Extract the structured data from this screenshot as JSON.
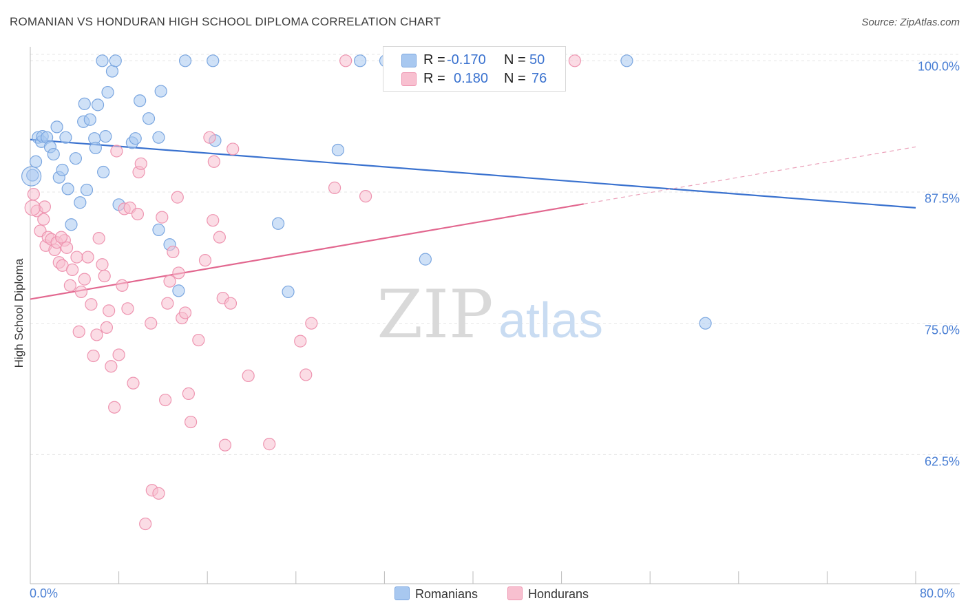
{
  "title": "ROMANIAN VS HONDURAN HIGH SCHOOL DIPLOMA CORRELATION CHART",
  "source": "Source: ZipAtlas.com",
  "watermark": {
    "zip": "ZIP",
    "atlas": "atlas"
  },
  "legend": {
    "r_label": "R =",
    "n_label": "N =",
    "rows": [
      {
        "name": "Romanians",
        "r": "-0.170",
        "n": "50",
        "color": "#a8c8f0",
        "stroke": "#7aa6e0"
      },
      {
        "name": "Hondurans",
        "r": "0.180",
        "n": "76",
        "color": "#f8c0d0",
        "stroke": "#ee94b0"
      }
    ]
  },
  "chart_data": {
    "type": "scatter",
    "title": "ROMANIAN VS HONDURAN HIGH SCHOOL DIPLOMA CORRELATION CHART",
    "xlabel": "",
    "ylabel": "High School Diploma",
    "xlim": [
      0,
      80
    ],
    "ylim": [
      50.2,
      101.2
    ],
    "x_tick_labels": [
      "0.0%",
      "80.0%"
    ],
    "y_ticks": [
      {
        "value": 100.0,
        "label": "100.0%"
      },
      {
        "value": 87.5,
        "label": "87.5%"
      },
      {
        "value": 75.0,
        "label": "75.0%"
      },
      {
        "value": 62.5,
        "label": "62.5%"
      }
    ],
    "series": [
      {
        "name": "Romanians",
        "color": "#a8c8f0",
        "line_color": "#3a72cf",
        "r": -0.17,
        "n": 50,
        "trend": {
          "x0": 0,
          "y0": 92.5,
          "x1": 80,
          "y1": 86.0
        },
        "points": [
          [
            0.2,
            89.1
          ],
          [
            0.5,
            90.4
          ],
          [
            0.7,
            92.7
          ],
          [
            1.0,
            92.3
          ],
          [
            1.1,
            92.8
          ],
          [
            1.5,
            92.7
          ],
          [
            1.8,
            91.8
          ],
          [
            2.1,
            91.1
          ],
          [
            2.4,
            93.7
          ],
          [
            2.6,
            88.9
          ],
          [
            2.9,
            89.6
          ],
          [
            3.2,
            92.7
          ],
          [
            3.4,
            87.8
          ],
          [
            3.7,
            84.4
          ],
          [
            4.1,
            90.7
          ],
          [
            4.5,
            86.5
          ],
          [
            4.8,
            94.2
          ],
          [
            4.9,
            95.9
          ],
          [
            5.1,
            87.7
          ],
          [
            5.4,
            94.4
          ],
          [
            5.8,
            92.6
          ],
          [
            5.9,
            91.7
          ],
          [
            6.1,
            95.8
          ],
          [
            6.5,
            100.0
          ],
          [
            6.6,
            89.4
          ],
          [
            6.8,
            92.8
          ],
          [
            7.0,
            97.0
          ],
          [
            7.4,
            99.0
          ],
          [
            7.7,
            100.0
          ],
          [
            8.0,
            86.3
          ],
          [
            9.2,
            92.2
          ],
          [
            9.5,
            92.6
          ],
          [
            9.9,
            96.2
          ],
          [
            10.7,
            94.5
          ],
          [
            11.6,
            92.7
          ],
          [
            11.8,
            97.1
          ],
          [
            11.6,
            83.9
          ],
          [
            12.6,
            82.5
          ],
          [
            13.4,
            78.1
          ],
          [
            14.0,
            100.0
          ],
          [
            16.5,
            100.0
          ],
          [
            16.7,
            92.4
          ],
          [
            22.4,
            84.5
          ],
          [
            23.3,
            78.0
          ],
          [
            27.8,
            91.5
          ],
          [
            29.8,
            100.0
          ],
          [
            32.1,
            100.0
          ],
          [
            35.7,
            81.1
          ],
          [
            53.9,
            100.0
          ],
          [
            61.0,
            75.0
          ]
        ]
      },
      {
        "name": "Hondurans",
        "color": "#f8c0d0",
        "line_color": "#e2678f",
        "r": 0.18,
        "n": 76,
        "trend": {
          "x0": 0,
          "y0": 77.3,
          "x1": 80,
          "y1": 91.8,
          "solid_until": 50
        },
        "points": [
          [
            0.3,
            87.3
          ],
          [
            0.6,
            85.7
          ],
          [
            0.9,
            83.8
          ],
          [
            1.2,
            84.9
          ],
          [
            1.4,
            82.4
          ],
          [
            1.6,
            83.2
          ],
          [
            1.9,
            83.0
          ],
          [
            2.2,
            82.0
          ],
          [
            2.4,
            82.7
          ],
          [
            2.6,
            80.8
          ],
          [
            2.9,
            80.5
          ],
          [
            3.1,
            82.9
          ],
          [
            3.3,
            82.2
          ],
          [
            3.6,
            78.6
          ],
          [
            3.8,
            80.1
          ],
          [
            4.2,
            81.3
          ],
          [
            4.4,
            74.2
          ],
          [
            4.6,
            78.0
          ],
          [
            4.9,
            79.2
          ],
          [
            5.2,
            81.3
          ],
          [
            5.5,
            76.8
          ],
          [
            5.7,
            71.9
          ],
          [
            6.0,
            73.9
          ],
          [
            6.2,
            83.1
          ],
          [
            6.5,
            80.6
          ],
          [
            6.7,
            79.5
          ],
          [
            6.9,
            74.6
          ],
          [
            7.1,
            76.2
          ],
          [
            7.3,
            70.9
          ],
          [
            7.6,
            67.0
          ],
          [
            7.8,
            91.4
          ],
          [
            8.0,
            72.0
          ],
          [
            8.3,
            78.6
          ],
          [
            8.5,
            85.9
          ],
          [
            8.8,
            76.4
          ],
          [
            9.0,
            86.0
          ],
          [
            9.3,
            69.3
          ],
          [
            9.7,
            85.4
          ],
          [
            9.8,
            89.4
          ],
          [
            10.0,
            90.2
          ],
          [
            10.4,
            55.9
          ],
          [
            10.9,
            75.0
          ],
          [
            11.0,
            59.1
          ],
          [
            11.6,
            58.8
          ],
          [
            11.9,
            85.1
          ],
          [
            12.2,
            67.7
          ],
          [
            12.4,
            76.9
          ],
          [
            12.6,
            79.0
          ],
          [
            12.9,
            81.8
          ],
          [
            13.3,
            87.0
          ],
          [
            13.4,
            79.8
          ],
          [
            13.7,
            75.5
          ],
          [
            14.0,
            76.0
          ],
          [
            14.3,
            68.3
          ],
          [
            14.5,
            65.6
          ],
          [
            15.2,
            73.4
          ],
          [
            15.8,
            81.0
          ],
          [
            16.2,
            92.7
          ],
          [
            16.5,
            84.8
          ],
          [
            16.6,
            90.4
          ],
          [
            17.1,
            83.2
          ],
          [
            17.4,
            77.4
          ],
          [
            18.1,
            76.9
          ],
          [
            17.6,
            63.4
          ],
          [
            18.3,
            91.6
          ],
          [
            19.7,
            70.0
          ],
          [
            21.6,
            63.5
          ],
          [
            24.4,
            73.3
          ],
          [
            24.9,
            70.1
          ],
          [
            25.4,
            75.0
          ],
          [
            27.5,
            87.9
          ],
          [
            28.5,
            100.0
          ],
          [
            30.3,
            87.1
          ],
          [
            49.2,
            100.0
          ],
          [
            1.3,
            86.1
          ],
          [
            2.8,
            83.2
          ]
        ]
      }
    ]
  }
}
